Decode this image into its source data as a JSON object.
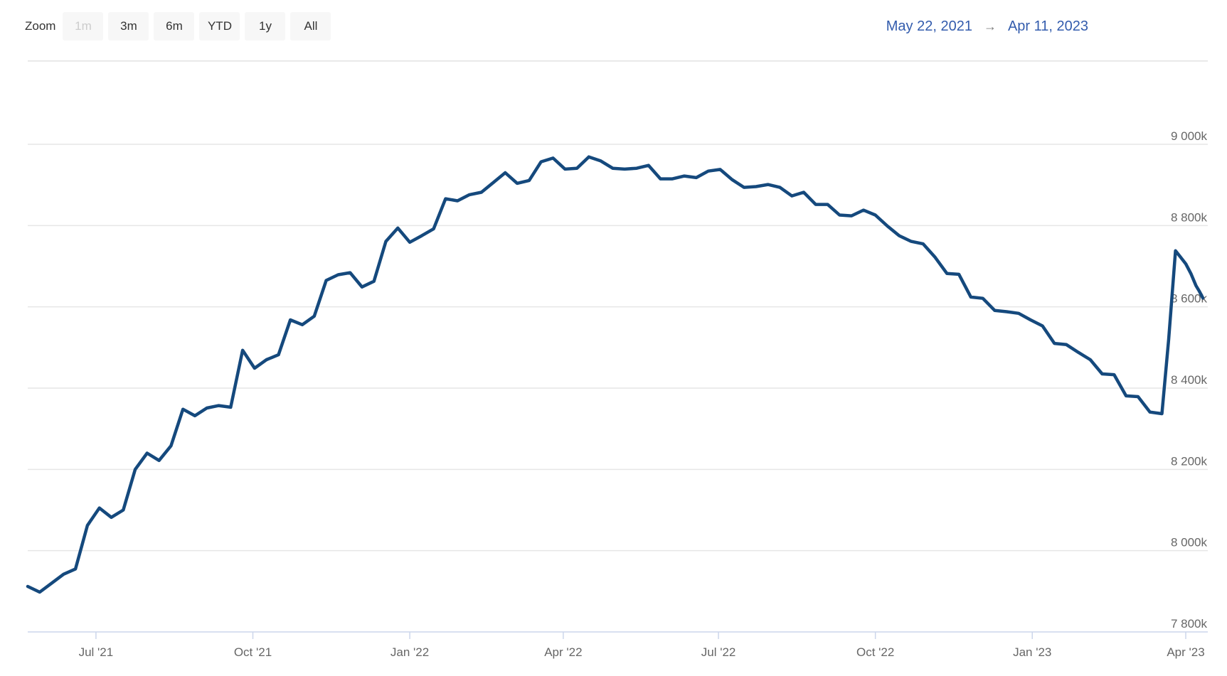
{
  "range_selector": {
    "zoom_label": "Zoom",
    "buttons": [
      {
        "label": "1m",
        "state": "disabled"
      },
      {
        "label": "3m",
        "state": "normal"
      },
      {
        "label": "6m",
        "state": "normal"
      },
      {
        "label": "YTD",
        "state": "normal"
      },
      {
        "label": "1y",
        "state": "normal"
      },
      {
        "label": "All",
        "state": "normal"
      }
    ],
    "from": "May 22, 2021",
    "arrow": "→",
    "to": "Apr 11, 2023"
  },
  "colors": {
    "line": "#15497d",
    "grid": "#e6e6e6",
    "axis": "#ccd6eb",
    "tick_label": "#666666",
    "range_date": "#335cad",
    "button_bg": "#f7f7f7",
    "button_text": "#333333",
    "button_disabled_text": "#cccccc",
    "background": "#ffffff"
  },
  "chart_data": {
    "type": "line",
    "title": "",
    "xlabel": "",
    "ylabel": "",
    "unit": "thousands (k)",
    "grid": true,
    "legend": "none",
    "xlim": [
      "2021-05-22",
      "2023-04-11"
    ],
    "ylim": [
      7800,
      9205
    ],
    "yticks": [
      {
        "value": 7800,
        "label": "7 800k"
      },
      {
        "value": 8000,
        "label": "8 000k"
      },
      {
        "value": 8200,
        "label": "8 200k"
      },
      {
        "value": 8400,
        "label": "8 400k"
      },
      {
        "value": 8600,
        "label": "8 600k"
      },
      {
        "value": 8800,
        "label": "8 800k"
      },
      {
        "value": 9000,
        "label": "9 000k"
      }
    ],
    "xticks": [
      {
        "date": "2021-07-01",
        "label": "Jul '21"
      },
      {
        "date": "2021-10-01",
        "label": "Oct '21"
      },
      {
        "date": "2022-01-01",
        "label": "Jan '22"
      },
      {
        "date": "2022-04-01",
        "label": "Apr '22"
      },
      {
        "date": "2022-07-01",
        "label": "Jul '22"
      },
      {
        "date": "2022-10-01",
        "label": "Oct '22"
      },
      {
        "date": "2023-01-01",
        "label": "Jan '23"
      },
      {
        "date": "2023-04-01",
        "label": "Apr '23"
      }
    ],
    "series": [
      {
        "color": "#15497d",
        "points": [
          [
            "2021-05-22",
            7912
          ],
          [
            "2021-05-29",
            7898
          ],
          [
            "2021-06-05",
            7920
          ],
          [
            "2021-06-12",
            7942
          ],
          [
            "2021-06-19",
            7955
          ],
          [
            "2021-06-26",
            8062
          ],
          [
            "2021-07-03",
            8105
          ],
          [
            "2021-07-10",
            8082
          ],
          [
            "2021-07-17",
            8100
          ],
          [
            "2021-07-24",
            8200
          ],
          [
            "2021-07-31",
            8240
          ],
          [
            "2021-08-07",
            8222
          ],
          [
            "2021-08-14",
            8258
          ],
          [
            "2021-08-21",
            8348
          ],
          [
            "2021-08-28",
            8332
          ],
          [
            "2021-09-04",
            8351
          ],
          [
            "2021-09-11",
            8357
          ],
          [
            "2021-09-18",
            8353
          ],
          [
            "2021-09-25",
            8493
          ],
          [
            "2021-10-02",
            8449
          ],
          [
            "2021-10-09",
            8470
          ],
          [
            "2021-10-16",
            8482
          ],
          [
            "2021-10-23",
            8568
          ],
          [
            "2021-10-30",
            8556
          ],
          [
            "2021-11-06",
            8577
          ],
          [
            "2021-11-13",
            8665
          ],
          [
            "2021-11-20",
            8679
          ],
          [
            "2021-11-27",
            8684
          ],
          [
            "2021-12-04",
            8649
          ],
          [
            "2021-12-11",
            8663
          ],
          [
            "2021-12-18",
            8761
          ],
          [
            "2021-12-25",
            8794
          ],
          [
            "2022-01-01",
            8759
          ],
          [
            "2022-01-08",
            8775
          ],
          [
            "2022-01-15",
            8792
          ],
          [
            "2022-01-22",
            8866
          ],
          [
            "2022-01-29",
            8861
          ],
          [
            "2022-02-05",
            8876
          ],
          [
            "2022-02-12",
            8882
          ],
          [
            "2022-02-19",
            8906
          ],
          [
            "2022-02-26",
            8930
          ],
          [
            "2022-03-05",
            8904
          ],
          [
            "2022-03-12",
            8911
          ],
          [
            "2022-03-19",
            8957
          ],
          [
            "2022-03-26",
            8966
          ],
          [
            "2022-04-02",
            8939
          ],
          [
            "2022-04-09",
            8941
          ],
          [
            "2022-04-16",
            8969
          ],
          [
            "2022-04-23",
            8959
          ],
          [
            "2022-04-30",
            8941
          ],
          [
            "2022-05-07",
            8939
          ],
          [
            "2022-05-14",
            8941
          ],
          [
            "2022-05-21",
            8948
          ],
          [
            "2022-05-28",
            8915
          ],
          [
            "2022-06-04",
            8915
          ],
          [
            "2022-06-11",
            8922
          ],
          [
            "2022-06-18",
            8918
          ],
          [
            "2022-06-25",
            8934
          ],
          [
            "2022-07-02",
            8938
          ],
          [
            "2022-07-09",
            8913
          ],
          [
            "2022-07-16",
            8894
          ],
          [
            "2022-07-23",
            8896
          ],
          [
            "2022-07-30",
            8901
          ],
          [
            "2022-08-06",
            8894
          ],
          [
            "2022-08-13",
            8873
          ],
          [
            "2022-08-20",
            8882
          ],
          [
            "2022-08-27",
            8852
          ],
          [
            "2022-09-03",
            8852
          ],
          [
            "2022-09-10",
            8826
          ],
          [
            "2022-09-17",
            8824
          ],
          [
            "2022-09-24",
            8838
          ],
          [
            "2022-10-01",
            8826
          ],
          [
            "2022-10-08",
            8799
          ],
          [
            "2022-10-15",
            8775
          ],
          [
            "2022-10-22",
            8761
          ],
          [
            "2022-10-29",
            8755
          ],
          [
            "2022-11-05",
            8722
          ],
          [
            "2022-11-12",
            8682
          ],
          [
            "2022-11-19",
            8680
          ],
          [
            "2022-11-26",
            8624
          ],
          [
            "2022-12-03",
            8621
          ],
          [
            "2022-12-10",
            8591
          ],
          [
            "2022-12-17",
            8588
          ],
          [
            "2022-12-24",
            8584
          ],
          [
            "2022-12-31",
            8568
          ],
          [
            "2023-01-07",
            8553
          ],
          [
            "2023-01-14",
            8510
          ],
          [
            "2023-01-21",
            8507
          ],
          [
            "2023-01-28",
            8488
          ],
          [
            "2023-02-04",
            8470
          ],
          [
            "2023-02-11",
            8435
          ],
          [
            "2023-02-18",
            8433
          ],
          [
            "2023-02-25",
            8381
          ],
          [
            "2023-03-04",
            8379
          ],
          [
            "2023-03-11",
            8341
          ],
          [
            "2023-03-18",
            8337
          ],
          [
            "2023-03-22",
            8520
          ],
          [
            "2023-03-26",
            8738
          ],
          [
            "2023-03-29",
            8722
          ],
          [
            "2023-04-01",
            8706
          ],
          [
            "2023-04-04",
            8682
          ],
          [
            "2023-04-07",
            8652
          ],
          [
            "2023-04-09",
            8638
          ],
          [
            "2023-04-11",
            8622
          ]
        ]
      }
    ]
  }
}
